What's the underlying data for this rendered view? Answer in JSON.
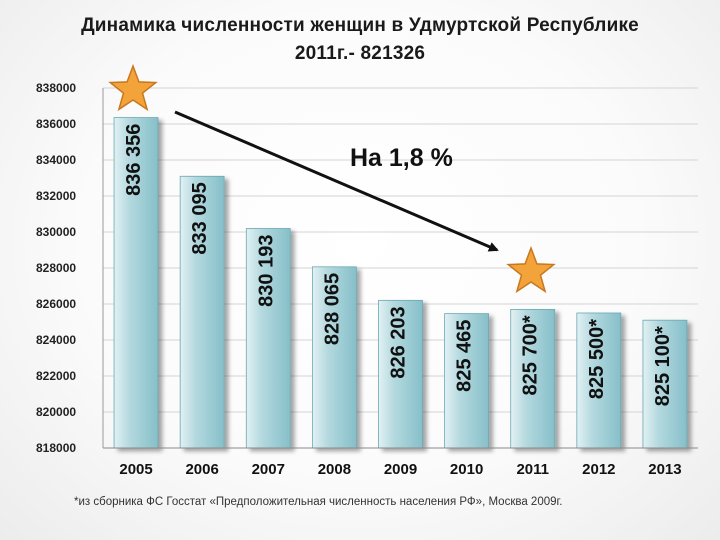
{
  "title_line1": "Динамика численности женщин в Удмуртской Республике",
  "title_line2": "2011г.- 821326",
  "footnote": "*из сборника ФС Госстат «Предположительная численность населения РФ», Москва 2009г.",
  "annotation": "На 1,8 %",
  "colors": {
    "bar_light": "#e2f1f3",
    "bar_mid": "#b4d9df",
    "bar_dark": "#86bfc9",
    "bar_stroke": "#6aa8b3",
    "arrow": "#111111",
    "star": "#f2a33a",
    "star_stroke": "#c8781d",
    "grid": "#d4d4d4"
  },
  "chart_data": {
    "type": "bar",
    "categories": [
      "2005",
      "2006",
      "2007",
      "2008",
      "2009",
      "2010",
      "2011",
      "2012",
      "2013"
    ],
    "values": [
      836356,
      833095,
      830193,
      828065,
      826203,
      825465,
      825700,
      825500,
      825100
    ],
    "data_labels": [
      "836 356",
      "833 095",
      "830 193",
      "828 065",
      "826 203",
      "825 465",
      "825 700*",
      "825 500*",
      "825 100*"
    ],
    "ylim": [
      818000,
      838000
    ],
    "yticks": [
      818000,
      820000,
      822000,
      824000,
      826000,
      828000,
      830000,
      832000,
      834000,
      836000,
      838000
    ],
    "ytick_labels": [
      "818000",
      "820000",
      "822000",
      "824000",
      "826000",
      "828000",
      "830000",
      "832000",
      "834000",
      "836000",
      "838000"
    ],
    "grid": true,
    "xlabel": "",
    "ylabel": ""
  }
}
